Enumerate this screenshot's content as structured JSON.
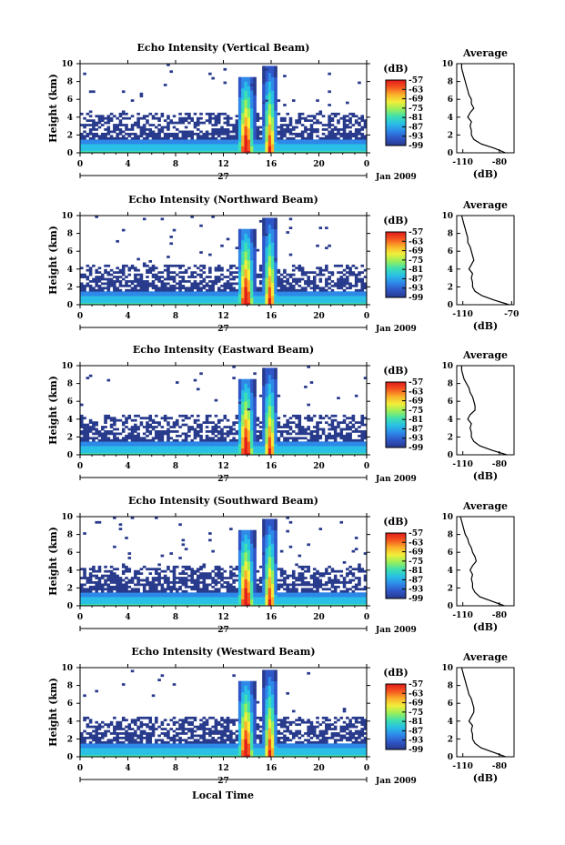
{
  "colors": {
    "background": "#ffffff",
    "scale": [
      "#283a8c",
      "#2f55c6",
      "#2e88e8",
      "#28bfe6",
      "#3fe0b0",
      "#9aef5a",
      "#f2ee3a",
      "#fbb02a",
      "#f5561e",
      "#e01b1b"
    ]
  },
  "x_axis_label": "Local Time",
  "chart_data": [
    {
      "type": "heatmap",
      "title": "Echo Intensity (Vertical Beam)",
      "ylabel": "Height (km)",
      "y_ticks": [
        "0",
        "2",
        "4",
        "6",
        "8",
        "10"
      ],
      "ylim": [
        0,
        10
      ],
      "x_ticks": [
        "0",
        "4",
        "8",
        "12",
        "16",
        "20",
        "0"
      ],
      "xlim": [
        0,
        24
      ],
      "date_day": "27",
      "date_month_year": "Jan 2009",
      "colorbar": {
        "title": "(dB)",
        "ticks": [
          "-57",
          "-63",
          "-69",
          "-75",
          "-81",
          "-87",
          "-93",
          "-99"
        ],
        "range": [
          -99,
          -57
        ]
      },
      "profile": {
        "title": "Average",
        "xlabel": "(dB)",
        "x_ticks": [
          "-110",
          "-80"
        ],
        "xlim": [
          -115,
          -68
        ],
        "y_ticks": [
          "0",
          "2",
          "4",
          "6",
          "8",
          "10"
        ],
        "ylim": [
          0,
          10
        ],
        "heights": [
          0,
          0.5,
          1,
          1.5,
          2,
          2.5,
          3,
          3.5,
          4,
          4.5,
          5,
          5.5,
          6,
          6.5,
          7,
          7.5,
          8,
          8.5,
          9,
          9.5,
          10
        ],
        "values": [
          -75,
          -84,
          -95,
          -101,
          -103,
          -103,
          -104,
          -103,
          -106,
          -104,
          -101,
          -103,
          -103,
          -105,
          -106,
          -107,
          -108,
          -109,
          -110,
          -111,
          -111
        ]
      }
    },
    {
      "type": "heatmap",
      "title": "Echo Intensity (Northward Beam)",
      "ylabel": "Height (km)",
      "y_ticks": [
        "0",
        "2",
        "4",
        "6",
        "8",
        "10"
      ],
      "ylim": [
        0,
        10
      ],
      "x_ticks": [
        "0",
        "4",
        "8",
        "12",
        "16",
        "20",
        "0"
      ],
      "xlim": [
        0,
        24
      ],
      "date_day": "27",
      "date_month_year": "Jan 2009",
      "colorbar": {
        "title": "(dB)",
        "ticks": [
          "-57",
          "-63",
          "-69",
          "-75",
          "-81",
          "-87",
          "-93",
          "-99"
        ],
        "range": [
          -99,
          -57
        ]
      },
      "profile": {
        "title": "Average",
        "xlabel": "(dB)",
        "x_ticks": [
          "-110",
          "-70"
        ],
        "xlim": [
          -115,
          -68
        ],
        "y_ticks": [
          "0",
          "2",
          "4",
          "6",
          "8",
          "10"
        ],
        "ylim": [
          0,
          10
        ],
        "heights": [
          0,
          0.5,
          1,
          1.5,
          2,
          2.5,
          3,
          3.5,
          4,
          4.5,
          5,
          5.5,
          6,
          6.5,
          7,
          7.5,
          8,
          8.5,
          9,
          9.5,
          10
        ],
        "values": [
          -72,
          -84,
          -94,
          -100,
          -102,
          -102,
          -103,
          -102,
          -105,
          -103,
          -101,
          -102,
          -103,
          -104,
          -106,
          -106,
          -107,
          -108,
          -109,
          -110,
          -111
        ]
      }
    },
    {
      "type": "heatmap",
      "title": "Echo Intensity (Eastward Beam)",
      "ylabel": "Height (km)",
      "y_ticks": [
        "0",
        "2",
        "4",
        "6",
        "8",
        "10"
      ],
      "ylim": [
        0,
        10
      ],
      "x_ticks": [
        "0",
        "4",
        "8",
        "12",
        "16",
        "20",
        "0"
      ],
      "xlim": [
        0,
        24
      ],
      "date_day": "27",
      "date_month_year": "Jan 2009",
      "colorbar": {
        "title": "(dB)",
        "ticks": [
          "-57",
          "-63",
          "-69",
          "-75",
          "-81",
          "-87",
          "-93",
          "-99"
        ],
        "range": [
          -99,
          -57
        ]
      },
      "profile": {
        "title": "Average",
        "xlabel": "(dB)",
        "x_ticks": [
          "-110",
          "-80"
        ],
        "xlim": [
          -115,
          -68
        ],
        "y_ticks": [
          "0",
          "2",
          "4",
          "6",
          "8",
          "10"
        ],
        "ylim": [
          0,
          10
        ],
        "heights": [
          0,
          0.5,
          1,
          1.5,
          2,
          2.5,
          3,
          3.5,
          4,
          4.5,
          5,
          5.5,
          6,
          6.5,
          7,
          7.5,
          8,
          8.5,
          9,
          9.5,
          10
        ],
        "values": [
          -74,
          -86,
          -96,
          -101,
          -103,
          -103,
          -104,
          -103,
          -106,
          -104,
          -100,
          -100,
          -101,
          -102,
          -104,
          -105,
          -107,
          -109,
          -110,
          -111,
          -111
        ]
      }
    },
    {
      "type": "heatmap",
      "title": "Echo Intensity (Southward Beam)",
      "ylabel": "Height (km)",
      "y_ticks": [
        "0",
        "2",
        "4",
        "6",
        "8",
        "10"
      ],
      "ylim": [
        0,
        10
      ],
      "x_ticks": [
        "0",
        "4",
        "8",
        "12",
        "16",
        "20",
        "0"
      ],
      "xlim": [
        0,
        24
      ],
      "date_day": "27",
      "date_month_year": "Jan 2009",
      "colorbar": {
        "title": "(dB)",
        "ticks": [
          "-57",
          "-63",
          "-69",
          "-75",
          "-81",
          "-87",
          "-93",
          "-99"
        ],
        "range": [
          -99,
          -57
        ]
      },
      "profile": {
        "title": "Average",
        "xlabel": "(dB)",
        "x_ticks": [
          "-110",
          "-80"
        ],
        "xlim": [
          -115,
          -68
        ],
        "y_ticks": [
          "0",
          "2",
          "4",
          "6",
          "8",
          "10"
        ],
        "ylim": [
          0,
          10
        ],
        "heights": [
          0,
          0.5,
          1,
          1.5,
          2,
          2.5,
          3,
          3.5,
          4,
          4.5,
          5,
          5.5,
          6,
          6.5,
          7,
          7.5,
          8,
          8.5,
          9,
          9.5,
          10
        ],
        "values": [
          -76,
          -86,
          -96,
          -100,
          -102,
          -102,
          -103,
          -102,
          -104,
          -102,
          -99,
          -100,
          -102,
          -103,
          -105,
          -106,
          -108,
          -109,
          -110,
          -111,
          -112
        ]
      }
    },
    {
      "type": "heatmap",
      "title": "Echo Intensity (Westward Beam)",
      "ylabel": "Height (km)",
      "y_ticks": [
        "0",
        "2",
        "4",
        "6",
        "8",
        "10"
      ],
      "ylim": [
        0,
        10
      ],
      "x_ticks": [
        "0",
        "4",
        "8",
        "12",
        "16",
        "20",
        "0"
      ],
      "xlim": [
        0,
        24
      ],
      "date_day": "27",
      "date_month_year": "Jan 2009",
      "colorbar": {
        "title": "(dB)",
        "ticks": [
          "-57",
          "-63",
          "-69",
          "-75",
          "-81",
          "-87",
          "-93",
          "-99"
        ],
        "range": [
          -99,
          -57
        ]
      },
      "profile": {
        "title": "Average",
        "xlabel": "(dB)",
        "x_ticks": [
          "-110",
          "-80"
        ],
        "xlim": [
          -115,
          -68
        ],
        "y_ticks": [
          "0",
          "2",
          "4",
          "6",
          "8",
          "10"
        ],
        "ylim": [
          0,
          10
        ],
        "heights": [
          0,
          0.5,
          1,
          1.5,
          2,
          2.5,
          3,
          3.5,
          4,
          4.5,
          5,
          5.5,
          6,
          6.5,
          7,
          7.5,
          8,
          8.5,
          9,
          9.5,
          10
        ],
        "values": [
          -75,
          -85,
          -95,
          -100,
          -102,
          -102,
          -103,
          -102,
          -105,
          -103,
          -101,
          -101,
          -102,
          -103,
          -105,
          -106,
          -107,
          -108,
          -109,
          -110,
          -111
        ]
      }
    }
  ]
}
